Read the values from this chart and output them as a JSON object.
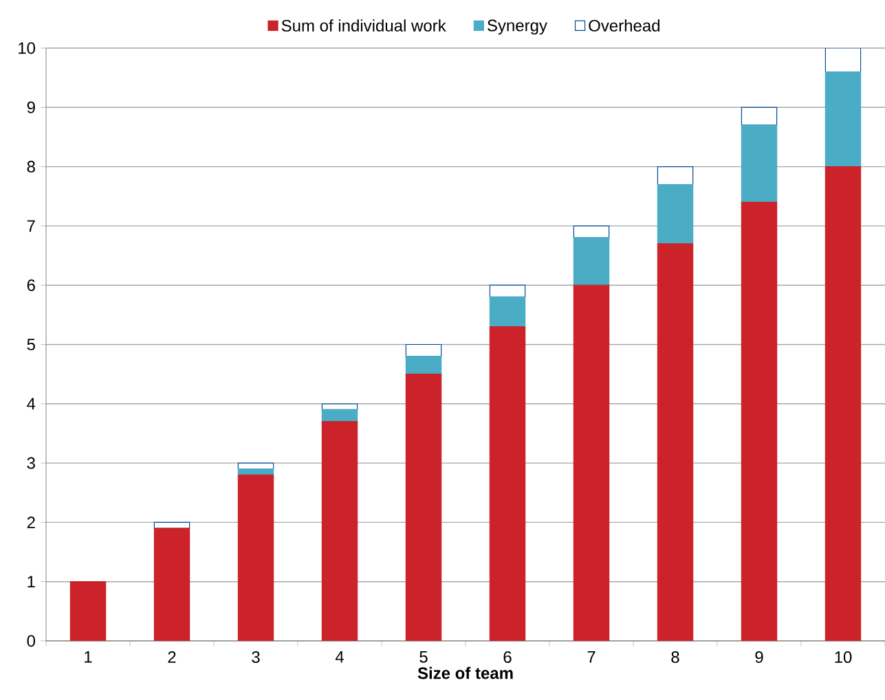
{
  "chart_data": {
    "type": "bar",
    "stacked": true,
    "xlabel": "Size of team",
    "categories": [
      "1",
      "2",
      "3",
      "4",
      "5",
      "6",
      "7",
      "8",
      "9",
      "10"
    ],
    "series": [
      {
        "name": "Sum of individual work",
        "color": "#cc2229",
        "values": [
          1,
          1.9,
          2.8,
          3.7,
          4.5,
          5.3,
          6.0,
          6.7,
          7.4,
          8.0
        ]
      },
      {
        "name": "Synergy",
        "color": "#4bacc6",
        "values": [
          0,
          0,
          0.1,
          0.2,
          0.3,
          0.5,
          0.8,
          1.0,
          1.3,
          1.6
        ]
      },
      {
        "name": "Overhead",
        "color": "#ffffff",
        "values": [
          0,
          0.1,
          0.1,
          0.1,
          0.2,
          0.2,
          0.2,
          0.3,
          0.3,
          0.4
        ]
      }
    ],
    "ylim": [
      0,
      10
    ],
    "yticks": [
      0,
      1,
      2,
      3,
      4,
      5,
      6,
      7,
      8,
      9,
      10
    ],
    "grid": "y",
    "legend": "top"
  }
}
